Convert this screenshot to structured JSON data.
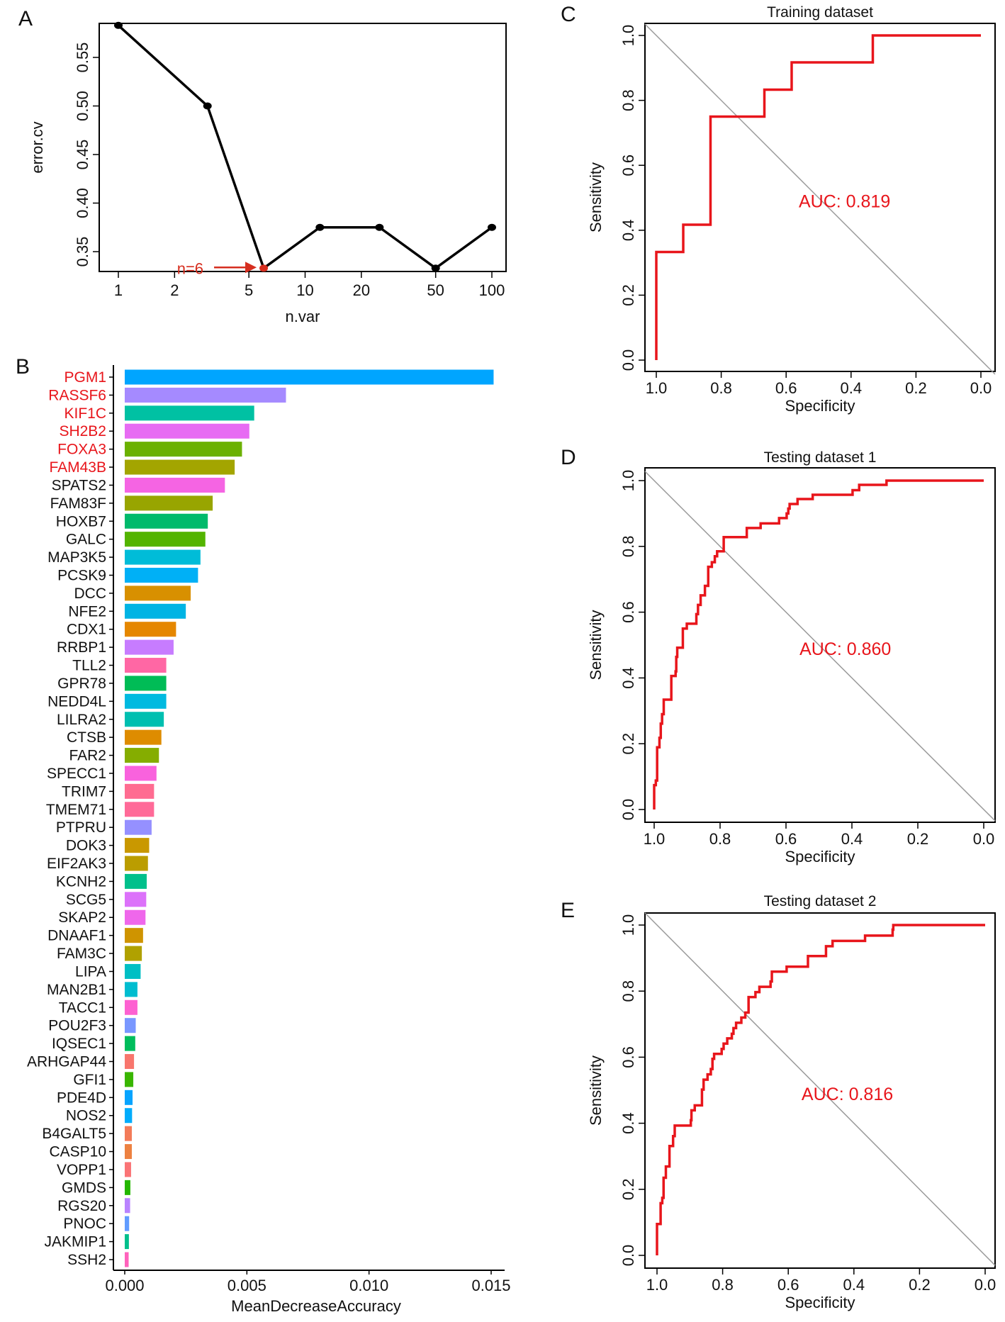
{
  "chart_data": [
    {
      "panel": "A",
      "type": "line",
      "xlabel": "n.var",
      "ylabel": "error.cv",
      "xscale": "log",
      "x": [
        1,
        3,
        6,
        12,
        25,
        50,
        100
      ],
      "y": [
        0.583,
        0.5,
        0.333,
        0.375,
        0.375,
        0.333,
        0.375
      ],
      "xticks": [
        1,
        2,
        5,
        10,
        20,
        50,
        100
      ],
      "yticks": [
        "0.35",
        "0.40",
        "0.45",
        "0.50",
        "0.55"
      ],
      "ylim": [
        0.325,
        0.59
      ],
      "annotation": {
        "text": "n=6",
        "x": 6,
        "y": 0.333,
        "color": "#d62e1f"
      },
      "line_color": "#000000"
    },
    {
      "panel": "B",
      "type": "bar",
      "orientation": "horizontal",
      "xlabel": "MeanDecreaseAccuracy",
      "xticks": [
        "0.000",
        "0.005",
        "0.010",
        "0.015"
      ],
      "xlim": [
        0,
        0.015
      ],
      "highlight_color": "#e8151b",
      "categories": [
        "PGM1",
        "RASSF6",
        "KIF1C",
        "SH2B2",
        "FOXA3",
        "FAM43B",
        "SPATS2",
        "FAM83F",
        "HOXB7",
        "GALC",
        "MAP3K5",
        "PCSK9",
        "DCC",
        "NFE2",
        "CDX1",
        "RRBP1",
        "TLL2",
        "GPR78",
        "NEDD4L",
        "LILRA2",
        "CTSB",
        "FAR2",
        "SPECC1",
        "TRIM7",
        "TMEM71",
        "PTPRU",
        "DOK3",
        "EIF2AK3",
        "KCNH2",
        "SCG5",
        "SKAP2",
        "DNAAF1",
        "FAM3C",
        "LIPA",
        "MAN2B1",
        "TACC1",
        "POU2F3",
        "IQSEC1",
        "ARHGAP44",
        "GFI1",
        "PDE4D",
        "NOS2",
        "B4GALT5",
        "CASP10",
        "VOPP1",
        "GMDS",
        "RGS20",
        "PNOC",
        "JAKMIP1",
        "SSH2"
      ],
      "highlighted": [
        "PGM1",
        "RASSF6",
        "KIF1C",
        "SH2B2",
        "FOXA3",
        "FAM43B"
      ],
      "values": [
        0.0151,
        0.0066,
        0.0053,
        0.0051,
        0.0048,
        0.0045,
        0.0041,
        0.0036,
        0.0034,
        0.0033,
        0.0031,
        0.003,
        0.0027,
        0.0025,
        0.0021,
        0.002,
        0.0017,
        0.0017,
        0.0017,
        0.0016,
        0.0015,
        0.0014,
        0.0013,
        0.0012,
        0.0012,
        0.0011,
        0.001,
        0.00095,
        0.0009,
        0.00088,
        0.00085,
        0.00075,
        0.0007,
        0.00065,
        0.00052,
        0.00052,
        0.00045,
        0.00043,
        0.00038,
        0.00035,
        0.00032,
        0.0003,
        0.00029,
        0.00029,
        0.00026,
        0.00023,
        0.00022,
        0.00018,
        0.00017,
        0.00016
      ],
      "colors": [
        "#00A5FF",
        "#A58AFF",
        "#00C1A3",
        "#E76BF3",
        "#6BB100",
        "#A3A500",
        "#F564E3",
        "#98A500",
        "#00BA6B",
        "#53B400",
        "#00BCD8",
        "#00B0F6",
        "#D89000",
        "#00B4E4",
        "#E58700",
        "#C77CFF",
        "#FF67A4",
        "#00BC56",
        "#00BAE0",
        "#00BFB0",
        "#DE8C00",
        "#85AD00",
        "#F962DD",
        "#FF6C91",
        "#FF6A98",
        "#9590FF",
        "#C99800",
        "#BB9D00",
        "#00C08B",
        "#DC71FA",
        "#EF67EB",
        "#CF9400",
        "#B0A100",
        "#00BFC4",
        "#00BDD0",
        "#FD61D1",
        "#7997FF",
        "#00BD5C",
        "#F8766D",
        "#39B600",
        "#06A4FF",
        "#00ACFC",
        "#F37B59",
        "#ED8141",
        "#FA7476",
        "#24B700",
        "#B983FF",
        "#619CFF",
        "#00C08B",
        "#FF62BC"
      ]
    },
    {
      "panel": "C",
      "type": "line",
      "title": "Training dataset",
      "xlabel": "Specificity",
      "ylabel": "Sensitivity",
      "xticks": [
        "1.0",
        "0.8",
        "0.6",
        "0.4",
        "0.2",
        "0.0"
      ],
      "yticks": [
        "0.0",
        "0.2",
        "0.4",
        "0.6",
        "0.8",
        "1.0"
      ],
      "auc_label": "AUC: 0.819",
      "curve_color": "#e8151b",
      "points": [
        [
          1,
          0
        ],
        [
          1,
          0.333
        ],
        [
          0.917,
          0.417
        ],
        [
          0.833,
          0.75
        ],
        [
          0.667,
          0.833
        ],
        [
          0.583,
          0.917
        ],
        [
          0.333,
          1
        ],
        [
          0,
          1
        ]
      ]
    },
    {
      "panel": "D",
      "type": "line",
      "title": "Testing dataset 1",
      "xlabel": "Specificity",
      "ylabel": "Sensitivity",
      "xticks": [
        "1.0",
        "0.8",
        "0.6",
        "0.4",
        "0.2",
        "0.0"
      ],
      "yticks": [
        "0.0",
        "0.2",
        "0.4",
        "0.6",
        "0.8",
        "1.0"
      ],
      "auc_label": "AUC: 0.860",
      "curve_color": "#e8151b",
      "points": [
        [
          1,
          0
        ],
        [
          1,
          0.074
        ],
        [
          0.995,
          0.088
        ],
        [
          0.991,
          0.189
        ],
        [
          0.984,
          0.218
        ],
        [
          0.98,
          0.261
        ],
        [
          0.976,
          0.29
        ],
        [
          0.971,
          0.334
        ],
        [
          0.948,
          0.406
        ],
        [
          0.935,
          0.42
        ],
        [
          0.933,
          0.464
        ],
        [
          0.93,
          0.492
        ],
        [
          0.913,
          0.55
        ],
        [
          0.901,
          0.565
        ],
        [
          0.875,
          0.565
        ],
        [
          0.872,
          0.594
        ],
        [
          0.867,
          0.622
        ],
        [
          0.859,
          0.651
        ],
        [
          0.846,
          0.68
        ],
        [
          0.836,
          0.738
        ],
        [
          0.825,
          0.752
        ],
        [
          0.816,
          0.77
        ],
        [
          0.809,
          0.785
        ],
        [
          0.789,
          0.828
        ],
        [
          0.719,
          0.856
        ],
        [
          0.677,
          0.87
        ],
        [
          0.621,
          0.886
        ],
        [
          0.598,
          0.9
        ],
        [
          0.593,
          0.915
        ],
        [
          0.589,
          0.929
        ],
        [
          0.565,
          0.944
        ],
        [
          0.519,
          0.957
        ],
        [
          0.398,
          0.971
        ],
        [
          0.378,
          0.987
        ],
        [
          0.295,
          1.0
        ],
        [
          0,
          1.0
        ]
      ]
    },
    {
      "panel": "E",
      "type": "line",
      "title": "Testing dataset 2",
      "xlabel": "Specificity",
      "ylabel": "Sensitivity",
      "xticks": [
        "1.0",
        "0.8",
        "0.6",
        "0.4",
        "0.2",
        "0.0"
      ],
      "yticks": [
        "0.0",
        "0.2",
        "0.4",
        "0.6",
        "0.8",
        "1.0"
      ],
      "auc_label": "AUC: 0.816",
      "curve_color": "#e8151b",
      "points": [
        [
          1,
          0
        ],
        [
          1,
          0.095
        ],
        [
          0.989,
          0.158
        ],
        [
          0.984,
          0.174
        ],
        [
          0.98,
          0.235
        ],
        [
          0.973,
          0.269
        ],
        [
          0.962,
          0.331
        ],
        [
          0.951,
          0.361
        ],
        [
          0.946,
          0.393
        ],
        [
          0.897,
          0.409
        ],
        [
          0.895,
          0.439
        ],
        [
          0.885,
          0.454
        ],
        [
          0.863,
          0.502
        ],
        [
          0.858,
          0.532
        ],
        [
          0.846,
          0.548
        ],
        [
          0.836,
          0.564
        ],
        [
          0.831,
          0.595
        ],
        [
          0.826,
          0.61
        ],
        [
          0.803,
          0.625
        ],
        [
          0.797,
          0.641
        ],
        [
          0.786,
          0.657
        ],
        [
          0.772,
          0.671
        ],
        [
          0.767,
          0.688
        ],
        [
          0.759,
          0.704
        ],
        [
          0.743,
          0.72
        ],
        [
          0.731,
          0.735
        ],
        [
          0.721,
          0.782
        ],
        [
          0.7,
          0.797
        ],
        [
          0.688,
          0.813
        ],
        [
          0.654,
          0.829
        ],
        [
          0.65,
          0.859
        ],
        [
          0.605,
          0.874
        ],
        [
          0.54,
          0.906
        ],
        [
          0.485,
          0.936
        ],
        [
          0.465,
          0.952
        ],
        [
          0.366,
          0.968
        ],
        [
          0.282,
          0.986
        ],
        [
          0.28,
          1.0
        ],
        [
          0,
          1.0
        ]
      ]
    }
  ]
}
